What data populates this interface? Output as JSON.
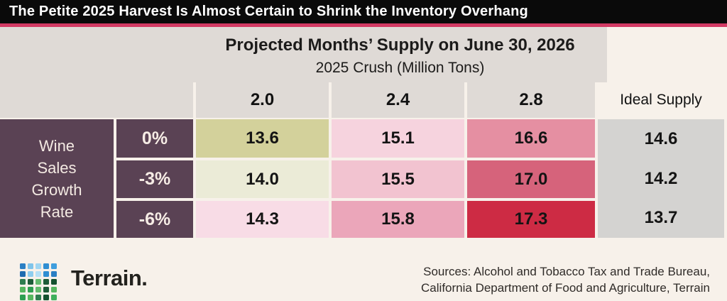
{
  "title": "The Petite 2025 Harvest Is Almost Certain to Shrink the Inventory Overhang",
  "header": {
    "line1": "Projected Months’ Supply on June 30, 2026",
    "line2": "2025 Crush (Million Tons)",
    "ideal_label": "Ideal Supply"
  },
  "row_axis_label": "Wine\nSales\nGrowth\nRate",
  "chart_data": {
    "type": "heatmap",
    "title": "Projected Months’ Supply on June 30, 2026",
    "x_axis_label": "2025 Crush (Million Tons)",
    "y_axis_label": "Wine Sales Growth Rate",
    "col_headers": [
      "2.0",
      "2.4",
      "2.8"
    ],
    "row_headers": [
      "0%",
      "-3%",
      "-6%"
    ],
    "rows": [
      {
        "label": "0%",
        "values": [
          "13.6",
          "15.1",
          "16.6"
        ],
        "ideal": "14.6"
      },
      {
        "label": "-3%",
        "values": [
          "14.0",
          "15.5",
          "17.0"
        ],
        "ideal": "14.2"
      },
      {
        "label": "-6%",
        "values": [
          "14.3",
          "15.8",
          "17.3"
        ],
        "ideal": "13.7"
      }
    ],
    "ideal_column_label": "Ideal Supply",
    "cell_colors": [
      [
        "#d3d19b",
        "#f6d3de",
        "#e58fa2"
      ],
      [
        "#ebebd7",
        "#f2c3d0",
        "#d6637b"
      ],
      [
        "#f8dce6",
        "#eba6ba",
        "#cd2b44"
      ]
    ],
    "ideal_column_color": "#d4d3d1",
    "legend_position": "none",
    "grid": false
  },
  "colors": {
    "title_bar_bg": "#0a0a0a",
    "accent_pink_rule": "#d23a64",
    "header_bg": "#dfdad6",
    "row_axis_bg": "#5a4254",
    "page_bg": "#f7f1ea"
  },
  "footer": {
    "wordmark": "Terrain.",
    "sources": "Sources: Alcohol and Tobacco Tax and Trade Bureau,\nCalifornia Department of Food and Agriculture, Terrain",
    "logo_dot_colors": [
      "#2b7fc4",
      "#7fc4ea",
      "#9fd6f2",
      "#2f8ed2",
      "#3f9ede",
      "#1f6cb0",
      "#8ecdee",
      "#b5e0f6",
      "#2f8ed2",
      "#2b7fc4",
      "#2e7d4f",
      "#1d5c38",
      "#63bb6e",
      "#1d5c38",
      "#14512f",
      "#56b75f",
      "#2e9e51",
      "#63bb6e",
      "#1d5c38",
      "#56b75f",
      "#2e9e51",
      "#56b75f",
      "#2e7d4f",
      "#14512f",
      "#3faf5c"
    ]
  }
}
